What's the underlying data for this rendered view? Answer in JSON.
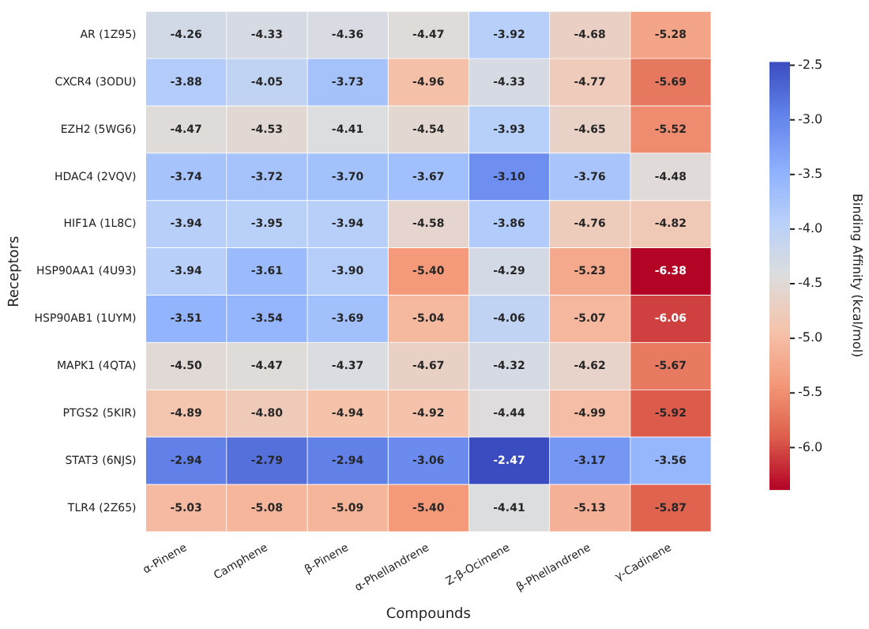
{
  "chart_data": {
    "type": "heatmap",
    "xlabel": "Compounds",
    "ylabel": "Receptors",
    "clabel": "Binding Affinity (kcal/mol)",
    "categories": [
      "α-Pinene",
      "Camphene",
      "β-Pinene",
      "α-Phellandrene",
      "Z-β-Ocimene",
      "β-Phellandrene",
      "γ-Cadinene"
    ],
    "y_categories": [
      "AR (1Z95)",
      "CXCR4 (3ODU)",
      "EZH2 (5WG6)",
      "HDAC4 (2VQV)",
      "HIF1A (1L8C)",
      "HSP90AA1 (4U93)",
      "HSP90AB1 (1UYM)",
      "MAPK1 (4QTA)",
      "PTGS2 (5KIR)",
      "STAT3 (6NJS)",
      "TLR4 (2Z65)"
    ],
    "cells": [
      [
        -4.26,
        -4.33,
        -4.36,
        -4.47,
        -3.92,
        -4.68,
        -5.28
      ],
      [
        -3.88,
        -4.05,
        -3.73,
        -4.96,
        -4.33,
        -4.77,
        -5.69
      ],
      [
        -4.47,
        -4.53,
        -4.41,
        -4.54,
        -3.93,
        -4.65,
        -5.52
      ],
      [
        -3.74,
        -3.72,
        -3.7,
        -3.67,
        -3.1,
        -3.76,
        -4.48
      ],
      [
        -3.94,
        -3.95,
        -3.94,
        -4.58,
        -3.86,
        -4.76,
        -4.82
      ],
      [
        -3.94,
        -3.61,
        -3.9,
        -5.4,
        -4.29,
        -5.23,
        -6.38
      ],
      [
        -3.51,
        -3.54,
        -3.69,
        -5.04,
        -4.06,
        -5.07,
        -6.06
      ],
      [
        -4.5,
        -4.47,
        -4.37,
        -4.67,
        -4.32,
        -4.62,
        -5.67
      ],
      [
        -4.89,
        -4.8,
        -4.94,
        -4.92,
        -4.44,
        -4.99,
        -5.92
      ],
      [
        -2.94,
        -2.79,
        -2.94,
        -3.06,
        -2.47,
        -3.17,
        -3.56
      ],
      [
        -5.03,
        -5.08,
        -5.09,
        -5.4,
        -4.41,
        -5.13,
        -5.87
      ]
    ],
    "cell_labels": [
      [
        "-4.26",
        "-4.33",
        "-4.36",
        "-4.47",
        "-3.92",
        "-4.68",
        "-5.28"
      ],
      [
        "-3.88",
        "-4.05",
        "-3.73",
        "-4.96",
        "-4.33",
        "-4.77",
        "-5.69"
      ],
      [
        "-4.47",
        "-4.53",
        "-4.41",
        "-4.54",
        "-3.93",
        "-4.65",
        "-5.52"
      ],
      [
        "-3.74",
        "-3.72",
        "-3.70",
        "-3.67",
        "-3.10",
        "-3.76",
        "-4.48"
      ],
      [
        "-3.94",
        "-3.95",
        "-3.94",
        "-4.58",
        "-3.86",
        "-4.76",
        "-4.82"
      ],
      [
        "-3.94",
        "-3.61",
        "-3.90",
        "-5.40",
        "-4.29",
        "-5.23",
        "-6.38"
      ],
      [
        "-3.51",
        "-3.54",
        "-3.69",
        "-5.04",
        "-4.06",
        "-5.07",
        "-6.06"
      ],
      [
        "-4.50",
        "-4.47",
        "-4.37",
        "-4.67",
        "-4.32",
        "-4.62",
        "-5.67"
      ],
      [
        "-4.89",
        "-4.80",
        "-4.94",
        "-4.92",
        "-4.44",
        "-4.99",
        "-5.92"
      ],
      [
        "-2.94",
        "-2.79",
        "-2.94",
        "-3.06",
        "-2.47",
        "-3.17",
        "-3.56"
      ],
      [
        "-5.03",
        "-5.08",
        "-5.09",
        "-5.40",
        "-4.41",
        "-5.13",
        "-5.87"
      ]
    ],
    "clim": [
      -6.38,
      -2.47
    ],
    "cticks": [
      {
        "value": -2.5,
        "label": "-2.5"
      },
      {
        "value": -3,
        "label": "-3.0"
      },
      {
        "value": -3.5,
        "label": "-3.5"
      },
      {
        "value": -4,
        "label": "-4.0"
      },
      {
        "value": -4.5,
        "label": "-4.5"
      },
      {
        "value": -5,
        "label": "-5.0"
      },
      {
        "value": -5.5,
        "label": "-5.5"
      },
      {
        "value": -6,
        "label": "-6.0"
      }
    ],
    "data_labels": true,
    "grid": false,
    "legend": false
  }
}
